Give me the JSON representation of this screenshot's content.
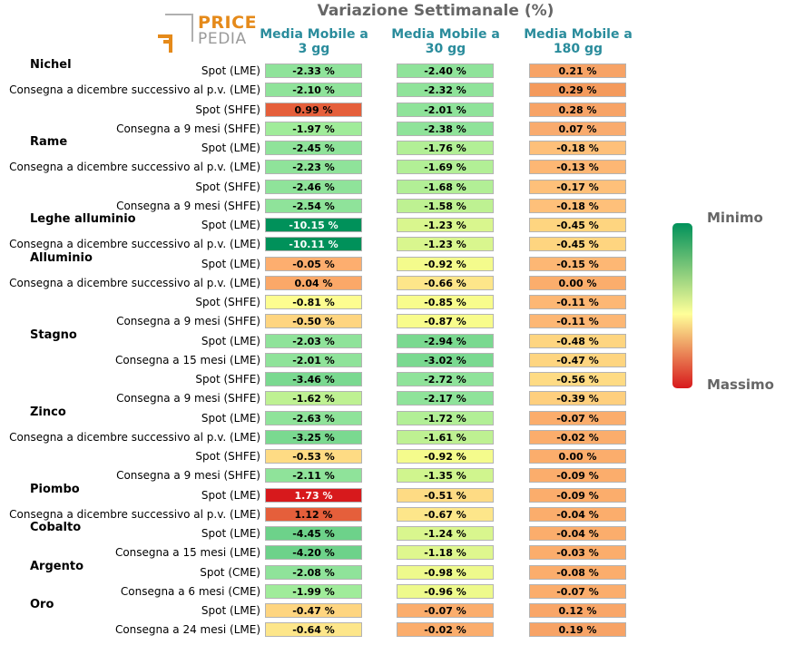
{
  "chart_data": {
    "type": "table",
    "title": "Variazione Settimanale (%)",
    "logo_text": [
      "PRICE",
      "PEDIA"
    ],
    "columns": [
      "Media Mobile a 3 gg",
      "Media Mobile a 30 gg",
      "Media Mobile a 180 gg"
    ],
    "legend": {
      "min_label": "Minimo",
      "max_label": "Massimo",
      "colors": [
        "#00915a",
        "#ffff99",
        "#d7191c"
      ]
    },
    "color_scale": {
      "low": "#00915a",
      "mid": "#ffff99",
      "high": "#d7191c"
    },
    "groups": [
      {
        "name": "Nichel",
        "rows": [
          {
            "label": "Spot (LME)",
            "values": [
              "-2.33 %",
              "-2.40 %",
              "0.21 %"
            ],
            "colors": [
              "#8fe39a",
              "#8fe39a",
              "#f7a366"
            ]
          },
          {
            "label": "Consegna a dicembre successivo al p.v. (LME)",
            "values": [
              "-2.10 %",
              "-2.32 %",
              "0.29 %"
            ],
            "colors": [
              "#8fe39a",
              "#8fe39a",
              "#f49a5c"
            ]
          },
          {
            "label": "Spot (SHFE)",
            "values": [
              "0.99 %",
              "-2.01 %",
              "0.28 %"
            ],
            "colors": [
              "#e55f3b",
              "#8fe39a",
              "#f7a366"
            ]
          },
          {
            "label": "Consegna a 9 mesi (SHFE)",
            "values": [
              "-1.97 %",
              "-2.38 %",
              "0.07 %"
            ],
            "colors": [
              "#a0ec9a",
              "#8fe39a",
              "#f9ab6e"
            ]
          }
        ]
      },
      {
        "name": "Rame",
        "rows": [
          {
            "label": "Spot (LME)",
            "values": [
              "-2.45 %",
              "-1.76 %",
              "-0.18 %"
            ],
            "colors": [
              "#8fe39a",
              "#b2ef96",
              "#fec07a"
            ]
          },
          {
            "label": "Consegna a dicembre successivo al p.v. (LME)",
            "values": [
              "-2.23 %",
              "-1.69 %",
              "-0.13 %"
            ],
            "colors": [
              "#8fe39a",
              "#b2ef96",
              "#fdb774"
            ]
          },
          {
            "label": "Spot (SHFE)",
            "values": [
              "-2.46 %",
              "-1.68 %",
              "-0.17 %"
            ],
            "colors": [
              "#8fe39a",
              "#b2ef96",
              "#fec07a"
            ]
          },
          {
            "label": "Consegna a 9 mesi (SHFE)",
            "values": [
              "-2.54 %",
              "-1.58 %",
              "-0.18 %"
            ],
            "colors": [
              "#8fe39a",
              "#bef192",
              "#fec07a"
            ]
          }
        ]
      },
      {
        "name": "Leghe alluminio",
        "rows": [
          {
            "label": "Spot (LME)",
            "values": [
              "-10.15 %",
              "-1.23 %",
              "-0.45 %"
            ],
            "colors": [
              "#00915a",
              "#d9f68e",
              "#fed580"
            ]
          },
          {
            "label": "Consegna a dicembre successivo al p.v. (LME)",
            "values": [
              "-10.11 %",
              "-1.23 %",
              "-0.45 %"
            ],
            "colors": [
              "#00915a",
              "#d9f68e",
              "#fed580"
            ]
          }
        ]
      },
      {
        "name": "Alluminio",
        "rows": [
          {
            "label": "Spot (LME)",
            "values": [
              "-0.05 %",
              "-0.92 %",
              "-0.15 %"
            ],
            "colors": [
              "#fdae6f",
              "#f4fb8c",
              "#fdb774"
            ]
          },
          {
            "label": "Consegna a dicembre successivo al p.v. (LME)",
            "values": [
              "0.04 %",
              "-0.66 %",
              "0.00 %"
            ],
            "colors": [
              "#fba868",
              "#fde68a",
              "#fbad6c"
            ]
          },
          {
            "label": "Spot (SHFE)",
            "values": [
              "-0.81 %",
              "-0.85 %",
              "-0.11 %"
            ],
            "colors": [
              "#fdfd90",
              "#f8fc8c",
              "#fdb774"
            ]
          },
          {
            "label": "Consegna a 9 mesi (SHFE)",
            "values": [
              "-0.50 %",
              "-0.87 %",
              "-0.11 %"
            ],
            "colors": [
              "#fed580",
              "#f8fc8c",
              "#fdb774"
            ]
          }
        ]
      },
      {
        "name": "Stagno",
        "rows": [
          {
            "label": "Spot (LME)",
            "values": [
              "-2.03 %",
              "-2.94 %",
              "-0.48 %"
            ],
            "colors": [
              "#8fe39a",
              "#7ad990",
              "#fed580"
            ]
          },
          {
            "label": "Consegna a 15 mesi (LME)",
            "values": [
              "-2.01 %",
              "-3.02 %",
              "-0.47 %"
            ],
            "colors": [
              "#8fe39a",
              "#7ad990",
              "#fed580"
            ]
          },
          {
            "label": "Spot (SHFE)",
            "values": [
              "-3.46 %",
              "-2.72 %",
              "-0.56 %"
            ],
            "colors": [
              "#7ad990",
              "#8fe39a",
              "#fedb84"
            ]
          },
          {
            "label": "Consegna a 9 mesi (SHFE)",
            "values": [
              "-1.62 %",
              "-2.17 %",
              "-0.39 %"
            ],
            "colors": [
              "#bef192",
              "#8fe39a",
              "#fecf7e"
            ]
          }
        ]
      },
      {
        "name": "Zinco",
        "rows": [
          {
            "label": "Spot (LME)",
            "values": [
              "-2.63 %",
              "-1.72 %",
              "-0.07 %"
            ],
            "colors": [
              "#8fe39a",
              "#b2ef96",
              "#fbad6c"
            ]
          },
          {
            "label": "Consegna a dicembre successivo al p.v. (LME)",
            "values": [
              "-3.25 %",
              "-1.61 %",
              "-0.02 %"
            ],
            "colors": [
              "#7ad990",
              "#bef192",
              "#fbad6c"
            ]
          },
          {
            "label": "Spot (SHFE)",
            "values": [
              "-0.53 %",
              "-0.92 %",
              "0.00 %"
            ],
            "colors": [
              "#fedb84",
              "#f4fb8c",
              "#fbad6c"
            ]
          },
          {
            "label": "Consegna a 9 mesi (SHFE)",
            "values": [
              "-2.11 %",
              "-1.35 %",
              "-0.09 %"
            ],
            "colors": [
              "#8fe39a",
              "#d0f58e",
              "#fbad6c"
            ]
          }
        ]
      },
      {
        "name": "Piombo",
        "rows": [
          {
            "label": "Spot (LME)",
            "values": [
              "1.73 %",
              "-0.51 %",
              "-0.09 %"
            ],
            "colors": [
              "#d7191c",
              "#fedb84",
              "#fbad6c"
            ]
          },
          {
            "label": "Consegna a dicembre successivo al p.v. (LME)",
            "values": [
              "1.12 %",
              "-0.67 %",
              "-0.04 %"
            ],
            "colors": [
              "#e55f3b",
              "#fde68a",
              "#fbad6c"
            ]
          }
        ]
      },
      {
        "name": "Cobalto",
        "rows": [
          {
            "label": "Spot (LME)",
            "values": [
              "-4.45 %",
              "-1.24 %",
              "-0.04 %"
            ],
            "colors": [
              "#6dd28a",
              "#d9f68e",
              "#fbad6c"
            ]
          },
          {
            "label": "Consegna a 15 mesi (LME)",
            "values": [
              "-4.20 %",
              "-1.18 %",
              "-0.03 %"
            ],
            "colors": [
              "#6dd28a",
              "#dff78e",
              "#fbad6c"
            ]
          }
        ]
      },
      {
        "name": "Argento",
        "rows": [
          {
            "label": "Spot (CME)",
            "values": [
              "-2.08 %",
              "-0.98 %",
              "-0.08 %"
            ],
            "colors": [
              "#8fe39a",
              "#eefa8c",
              "#fbad6c"
            ]
          },
          {
            "label": "Consegna a 6 mesi (CME)",
            "values": [
              "-1.99 %",
              "-0.96 %",
              "-0.07 %"
            ],
            "colors": [
              "#a0ec9a",
              "#eefa8c",
              "#fbad6c"
            ]
          }
        ]
      },
      {
        "name": "Oro",
        "rows": [
          {
            "label": "Spot (LME)",
            "values": [
              "-0.47 %",
              "-0.07 %",
              "0.12 %"
            ],
            "colors": [
              "#fed580",
              "#fbad6c",
              "#f9a668"
            ]
          },
          {
            "label": "Consegna a 24 mesi (LME)",
            "values": [
              "-0.64 %",
              "-0.02 %",
              "0.19 %"
            ],
            "colors": [
              "#fde68a",
              "#fbad6c",
              "#f7a366"
            ]
          }
        ]
      }
    ]
  }
}
